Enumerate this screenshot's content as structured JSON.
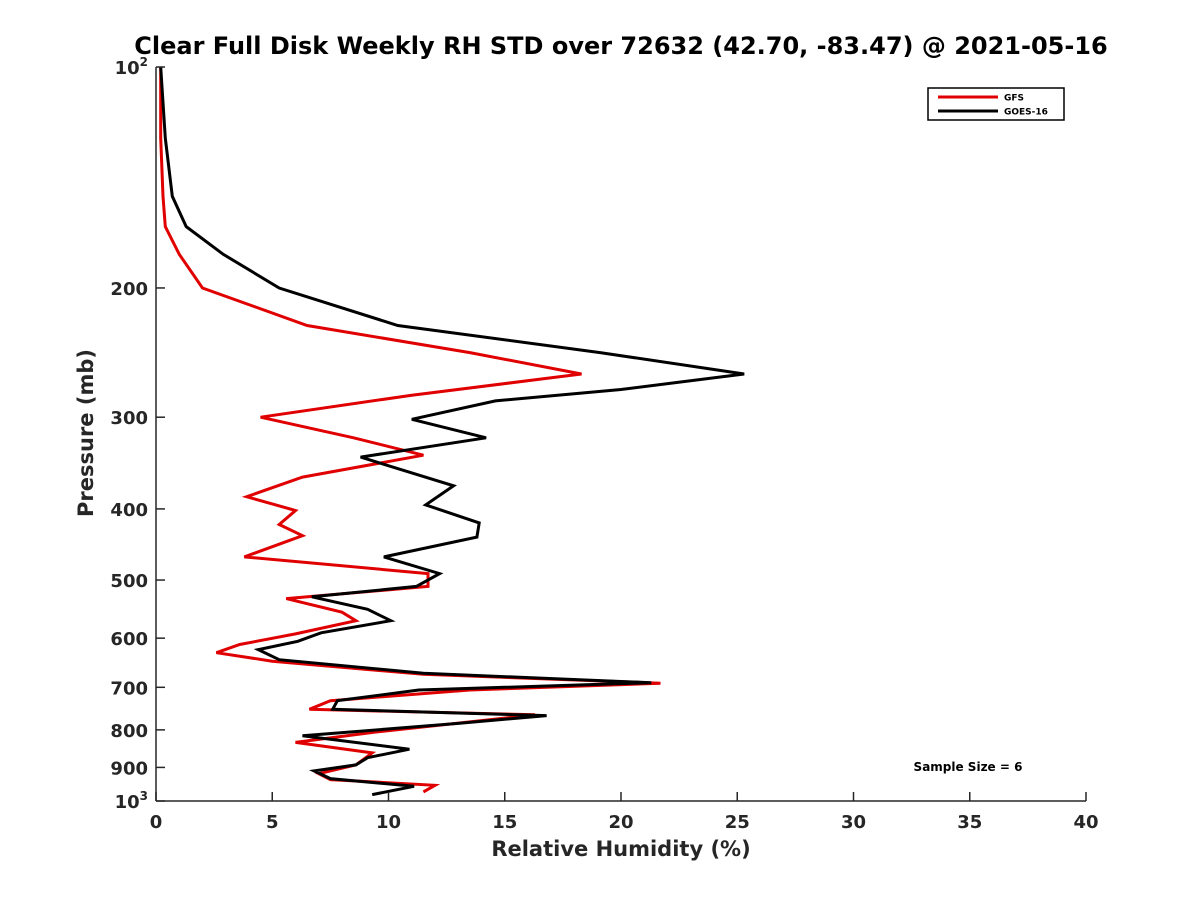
{
  "chart_data": {
    "type": "line",
    "title": "Clear Full Disk Weekly RH STD over 72632 (42.70, -83.47) @ 2021-05-16",
    "xlabel": "Relative Humidity (%)",
    "ylabel": "Pressure (mb)",
    "xlim": [
      0,
      40
    ],
    "ylim": [
      100,
      1000
    ],
    "y_scale": "log",
    "y_reversed": true,
    "grid": false,
    "legend_position": "top-right",
    "xticks": [
      {
        "value": 0,
        "label": "0"
      },
      {
        "value": 5,
        "label": "5"
      },
      {
        "value": 10,
        "label": "10"
      },
      {
        "value": 15,
        "label": "15"
      },
      {
        "value": 20,
        "label": "20"
      },
      {
        "value": 25,
        "label": "25"
      },
      {
        "value": 30,
        "label": "30"
      },
      {
        "value": 35,
        "label": "35"
      },
      {
        "value": 40,
        "label": "40"
      }
    ],
    "yticks": [
      {
        "value": 100,
        "base": "10",
        "exp": "2"
      },
      {
        "value": 200,
        "base": "200",
        "exp": ""
      },
      {
        "value": 300,
        "base": "300",
        "exp": ""
      },
      {
        "value": 400,
        "base": "400",
        "exp": ""
      },
      {
        "value": 500,
        "base": "500",
        "exp": ""
      },
      {
        "value": 600,
        "base": "600",
        "exp": ""
      },
      {
        "value": 700,
        "base": "700",
        "exp": ""
      },
      {
        "value": 800,
        "base": "800",
        "exp": ""
      },
      {
        "value": 900,
        "base": "900",
        "exp": ""
      },
      {
        "value": 1000,
        "base": "10",
        "exp": "3"
      }
    ],
    "series": [
      {
        "name": "GFS",
        "color": "#e00000",
        "points": [
          [
            0.2,
            100
          ],
          [
            0.2,
            125
          ],
          [
            0.3,
            150
          ],
          [
            0.4,
            165
          ],
          [
            1.0,
            180
          ],
          [
            2.0,
            200
          ],
          [
            6.5,
            225
          ],
          [
            13.5,
            245
          ],
          [
            18.3,
            262
          ],
          [
            11.0,
            280
          ],
          [
            4.5,
            300
          ],
          [
            8.5,
            320
          ],
          [
            11.5,
            338
          ],
          [
            6.3,
            362
          ],
          [
            3.9,
            385
          ],
          [
            6.0,
            402
          ],
          [
            5.3,
            420
          ],
          [
            6.3,
            435
          ],
          [
            3.8,
            465
          ],
          [
            11.7,
            490
          ],
          [
            11.7,
            510
          ],
          [
            5.6,
            530
          ],
          [
            8.0,
            553
          ],
          [
            8.6,
            568
          ],
          [
            6.0,
            592
          ],
          [
            3.6,
            612
          ],
          [
            2.6,
            628
          ],
          [
            5.0,
            645
          ],
          [
            11.5,
            672
          ],
          [
            21.7,
            691
          ],
          [
            13.5,
            706
          ],
          [
            7.5,
            730
          ],
          [
            6.6,
            750
          ],
          [
            16.3,
            763
          ],
          [
            14.0,
            777
          ],
          [
            9.5,
            805
          ],
          [
            6.0,
            832
          ],
          [
            9.3,
            860
          ],
          [
            8.6,
            893
          ],
          [
            7.0,
            918
          ],
          [
            7.5,
            935
          ],
          [
            12.0,
            952
          ],
          [
            11.5,
            972
          ]
        ]
      },
      {
        "name": "GOES-16",
        "color": "#000000",
        "points": [
          [
            0.2,
            100
          ],
          [
            0.4,
            125
          ],
          [
            0.7,
            150
          ],
          [
            1.3,
            165
          ],
          [
            2.9,
            180
          ],
          [
            5.3,
            200
          ],
          [
            10.4,
            225
          ],
          [
            19.1,
            245
          ],
          [
            25.3,
            262
          ],
          [
            20.0,
            275
          ],
          [
            14.6,
            285
          ],
          [
            11.0,
            302
          ],
          [
            14.2,
            320
          ],
          [
            8.8,
            340
          ],
          [
            12.8,
            372
          ],
          [
            11.6,
            395
          ],
          [
            13.9,
            418
          ],
          [
            13.8,
            437
          ],
          [
            9.8,
            465
          ],
          [
            12.2,
            490
          ],
          [
            11.2,
            510
          ],
          [
            6.7,
            527
          ],
          [
            9.1,
            548
          ],
          [
            10.1,
            568
          ],
          [
            7.1,
            590
          ],
          [
            6.1,
            606
          ],
          [
            4.4,
            622
          ],
          [
            5.3,
            642
          ],
          [
            11.5,
            670
          ],
          [
            21.3,
            690
          ],
          [
            11.3,
            706
          ],
          [
            7.8,
            730
          ],
          [
            7.6,
            750
          ],
          [
            16.8,
            765
          ],
          [
            13.0,
            784
          ],
          [
            6.3,
            815
          ],
          [
            10.9,
            850
          ],
          [
            9.1,
            873
          ],
          [
            8.6,
            893
          ],
          [
            6.8,
            910
          ],
          [
            7.5,
            932
          ],
          [
            11.1,
            955
          ],
          [
            9.3,
            980
          ]
        ]
      }
    ],
    "annotations": [
      {
        "text": "Sample Size = 6"
      }
    ]
  }
}
